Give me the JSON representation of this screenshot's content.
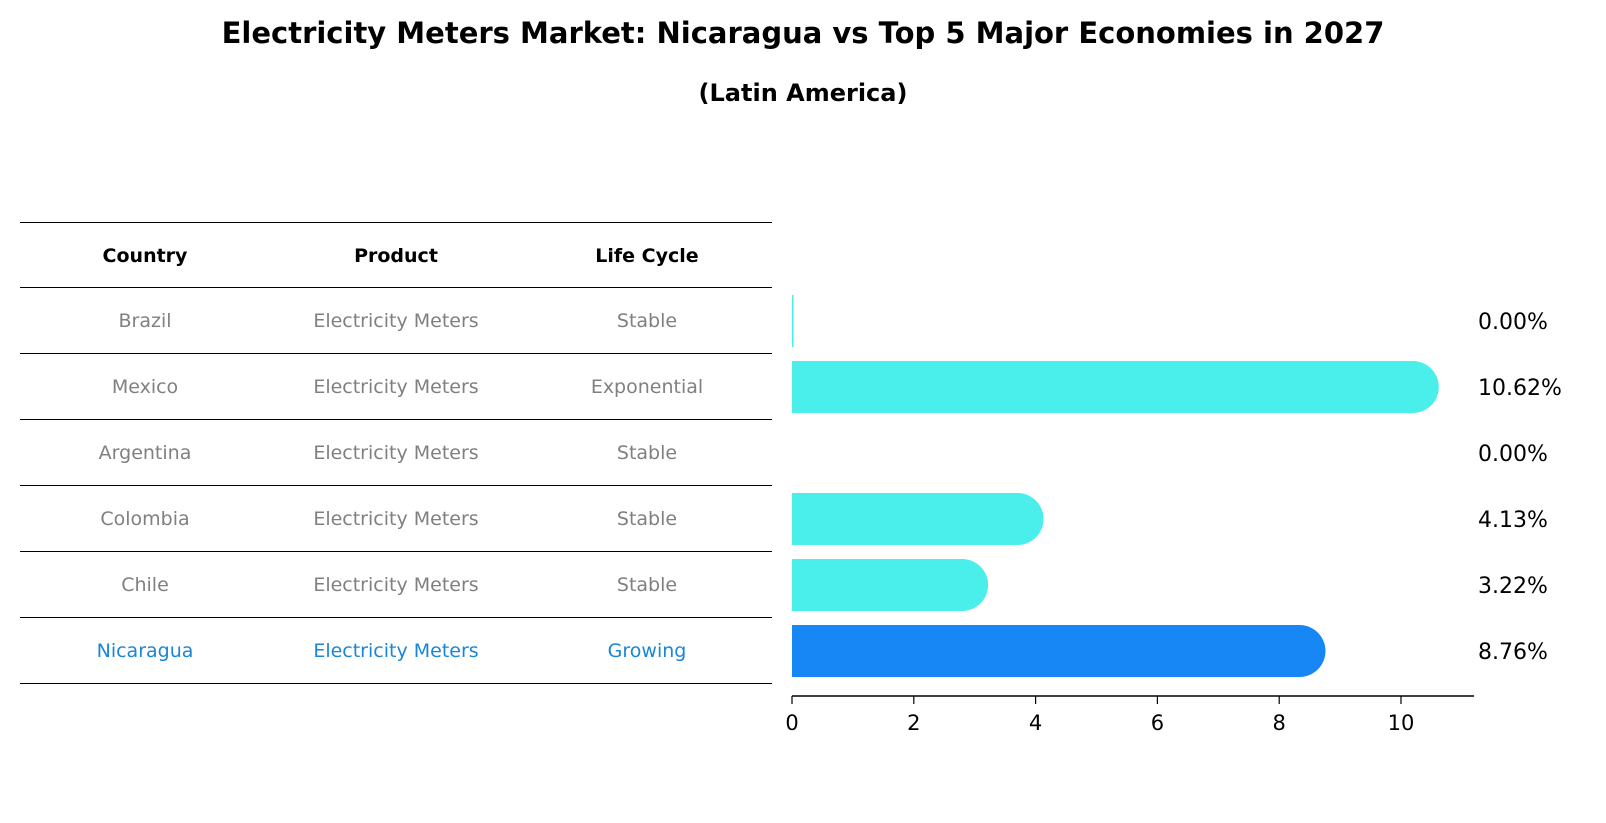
{
  "title": "Electricity Meters Market: Nicaragua vs Top 5 Major Economies in 2027",
  "subtitle": "(Latin America)",
  "table": {
    "headers": [
      "Country",
      "Product",
      "Life Cycle"
    ],
    "rows": [
      [
        "Brazil",
        "Electricity Meters",
        "Stable"
      ],
      [
        "Mexico",
        "Electricity Meters",
        "Exponential"
      ],
      [
        "Argentina",
        "Electricity Meters",
        "Stable"
      ],
      [
        "Colombia",
        "Electricity Meters",
        "Stable"
      ],
      [
        "Chile",
        "Electricity Meters",
        "Stable"
      ],
      [
        "Nicaragua",
        "Electricity Meters",
        "Growing"
      ]
    ],
    "highlight_row": "Nicaragua"
  },
  "chart_data": {
    "type": "bar",
    "orientation": "horizontal",
    "categories": [
      "Brazil",
      "Mexico",
      "Argentina",
      "Colombia",
      "Chile",
      "Nicaragua"
    ],
    "values": [
      0.0,
      10.62,
      0.0,
      4.13,
      3.22,
      8.76
    ],
    "value_labels": [
      "0.00%",
      "10.62%",
      "0.00%",
      "4.13%",
      "3.22%",
      "8.76%"
    ],
    "xticks": [
      "0",
      "2",
      "4",
      "6",
      "8",
      "10"
    ],
    "xtick_values": [
      0,
      2,
      4,
      6,
      8,
      10
    ],
    "xlim": [
      0,
      11.2
    ],
    "grid": false,
    "colors": {
      "default": "#4aeeea",
      "highlight": "#1787f5"
    }
  }
}
